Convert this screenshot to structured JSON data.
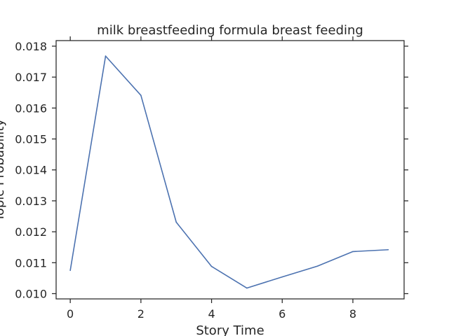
{
  "chart_data": {
    "type": "line",
    "title": "milk breastfeeding formula breast feeding",
    "xlabel": "Story Time",
    "ylabel": "Topic Probability",
    "xlim": [
      -0.4,
      9.45
    ],
    "ylim": [
      0.00983,
      0.01818
    ],
    "xticks": [
      0,
      2,
      4,
      6,
      8
    ],
    "xtick_labels": [
      "0",
      "2",
      "4",
      "6",
      "8"
    ],
    "yticks": [
      0.01,
      0.011,
      0.012,
      0.013,
      0.014,
      0.015,
      0.016,
      0.017,
      0.018
    ],
    "ytick_labels": [
      "0.010",
      "0.011",
      "0.012",
      "0.013",
      "0.014",
      "0.015",
      "0.016",
      "0.017",
      "0.018"
    ],
    "grid": false,
    "series": [
      {
        "color": "#4c72b0",
        "x": [
          0,
          1,
          2,
          3,
          4,
          5,
          6,
          7,
          8,
          9
        ],
        "y": [
          0.01075,
          0.01768,
          0.01641,
          0.01231,
          0.01088,
          0.01018,
          0.01054,
          0.01089,
          0.01136,
          0.01142
        ]
      }
    ]
  }
}
